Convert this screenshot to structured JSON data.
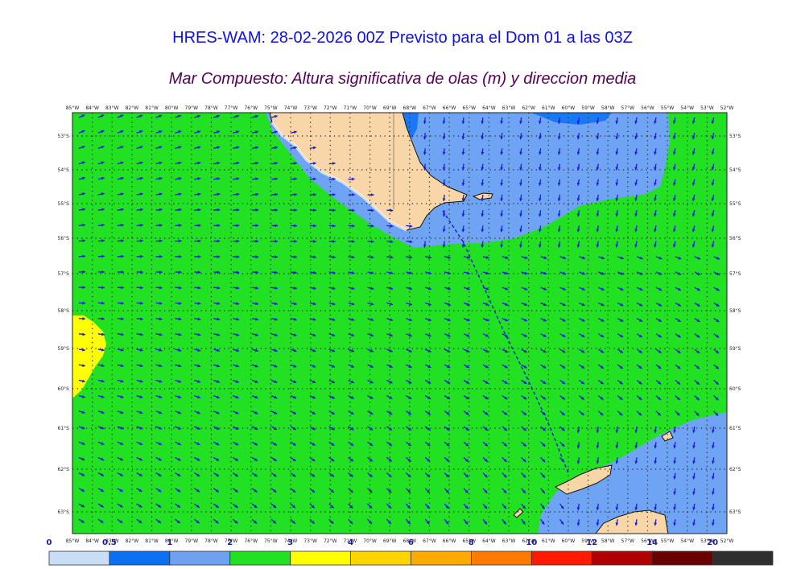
{
  "title": "HRES-WAM: 28-02-2026 00Z Previsto para el Dom 01 a las 03Z",
  "subtitle": "Mar Compuesto: Altura significativa de olas (m) y direccion media",
  "map": {
    "lon_range": [
      -85,
      -52
    ],
    "lat_range": [
      -63.5,
      -52.4
    ],
    "lon_labels": [
      "85°W",
      "84°W",
      "83°W",
      "82°W",
      "81°W",
      "80°W",
      "79°W",
      "78°W",
      "77°W",
      "76°W",
      "75°W",
      "74°W",
      "73°W",
      "72°W",
      "71°W",
      "70°W",
      "69°W",
      "68°W",
      "67°W",
      "66°W",
      "65°W",
      "64°W",
      "63°W",
      "62°W",
      "61°W",
      "60°W",
      "59°W",
      "58°W",
      "57°W",
      "56°W",
      "55°W",
      "54°W",
      "53°W",
      "52°W"
    ],
    "lat_labels": [
      "53°S",
      "54°S",
      "55°S",
      "56°S",
      "57°S",
      "58°S",
      "59°S",
      "60°S",
      "61°S",
      "62°S",
      "63°S"
    ],
    "colors": {
      "wave_0_5": "#c6dcf7",
      "wave_0_5_1": "#1a78f5",
      "wave_1_2": "#6fa4f4",
      "wave_2_3": "#22e022",
      "wave_3_4": "#ffff00",
      "land": "#f8d6a8",
      "arrow": "#1a1ad8",
      "grid": "#222222"
    }
  },
  "colorbar": {
    "labels": [
      "0",
      "0.5",
      "1",
      "2",
      "3",
      "4",
      "6",
      "8",
      "10",
      "12",
      "14",
      "20"
    ],
    "colors": [
      "#c8ddf6",
      "#0a6ff0",
      "#6fa1f1",
      "#22e022",
      "#ffff00",
      "#ffd400",
      "#ffaa00",
      "#ff7a00",
      "#ff1a00",
      "#b00000",
      "#6a0000",
      "#2f2f2f"
    ]
  }
}
